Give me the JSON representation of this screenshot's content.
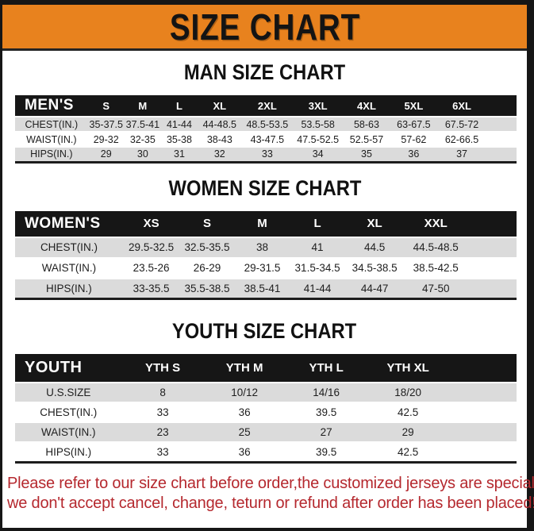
{
  "banner": {
    "title": "SIZE CHART"
  },
  "sections": [
    {
      "heading": "MAN SIZE CHART",
      "table": {
        "header": [
          "MEN'S",
          "S",
          "M",
          "L",
          "XL",
          "2XL",
          "3XL",
          "4XL",
          "5XL",
          "6XL"
        ],
        "rows": [
          {
            "label": "CHEST(IN.)",
            "values": [
              "35-37.5",
              "37.5-41",
              "41-44",
              "44-48.5",
              "48.5-53.5",
              "53.5-58",
              "58-63",
              "63-67.5",
              "67.5-72"
            ]
          },
          {
            "label": "WAIST(IN.)",
            "values": [
              "29-32",
              "32-35",
              "35-38",
              "38-43",
              "43-47.5",
              "47.5-52.5",
              "52.5-57",
              "57-62",
              "62-66.5"
            ]
          },
          {
            "label": "HIPS(IN.)",
            "values": [
              "29",
              "30",
              "31",
              "32",
              "33",
              "34",
              "35",
              "36",
              "37"
            ]
          }
        ]
      }
    },
    {
      "heading": "WOMEN SIZE CHART",
      "table": {
        "header": [
          "WOMEN'S",
          "XS",
          "S",
          "M",
          "L",
          "XL",
          "XXL"
        ],
        "rows": [
          {
            "label": "CHEST(IN.)",
            "values": [
              "29.5-32.5",
              "32.5-35.5",
              "38",
              "41",
              "44.5",
              "44.5-48.5"
            ]
          },
          {
            "label": "WAIST(IN.)",
            "values": [
              "23.5-26",
              "26-29",
              "29-31.5",
              "31.5-34.5",
              "34.5-38.5",
              "38.5-42.5"
            ]
          },
          {
            "label": "HIPS(IN.)",
            "values": [
              "33-35.5",
              "35.5-38.5",
              "38.5-41",
              "41-44",
              "44-47",
              "47-50"
            ]
          }
        ]
      }
    },
    {
      "heading": "YOUTH SIZE CHART",
      "table": {
        "header": [
          "YOUTH",
          "YTH S",
          "YTH M",
          "YTH L",
          "YTH XL"
        ],
        "rows": [
          {
            "label": "U.S.SIZE",
            "values": [
              "8",
              "10/12",
              "14/16",
              "18/20"
            ]
          },
          {
            "label": "CHEST(IN.)",
            "values": [
              "33",
              "36",
              "39.5",
              "42.5"
            ]
          },
          {
            "label": "WAIST(IN.)",
            "values": [
              "23",
              "25",
              "27",
              "29"
            ]
          },
          {
            "label": "HIPS(IN.)",
            "values": [
              "33",
              "36",
              "39.5",
              "42.5"
            ]
          }
        ]
      }
    }
  ],
  "footer": {
    "lines": [
      "Please refer to our size chart before order,the customized jerseys are special products,",
      "we don't accept cancel, change, teturn or refund after order has been placed!"
    ]
  },
  "colors": {
    "banner_bg": "#E8821E",
    "header_bg": "#161616",
    "shade_row": "#DBDBDB",
    "note_text": "#B5282E",
    "frame": "#161616"
  }
}
